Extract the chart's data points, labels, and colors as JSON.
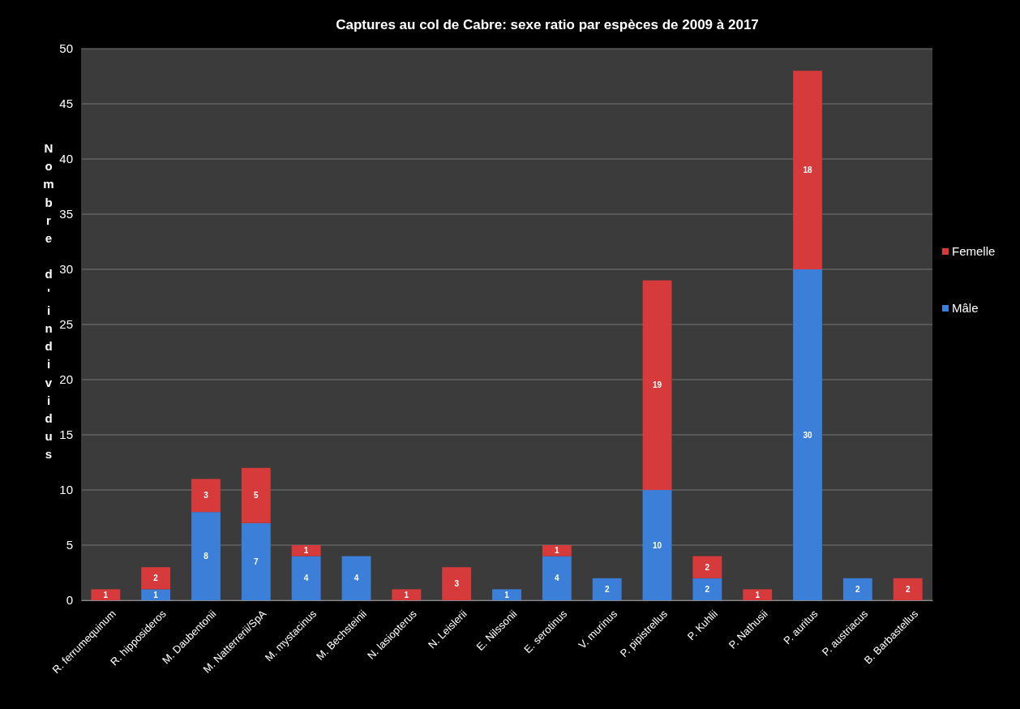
{
  "chart_data": {
    "type": "bar",
    "title": "Captures au col de Cabre: sexe ratio par espèces de 2009 à 2017",
    "ylabel": "Nombre d'individus",
    "categories": [
      "R. ferrumequinum",
      "R. hipposideros",
      "M. Daubentonii",
      "M. Natterrerii/SpA",
      "M. mystacinus",
      "M. Bechsteinii",
      "N. lasiopterus",
      "N. Leislerii",
      "E. Nilssonii",
      "E. serotinus",
      "V. murinus",
      "P. pipistrellus",
      "P. Kuhlii",
      "P. Nathusii",
      "P. auritus",
      "P. austriacus",
      "B. Barbastellus"
    ],
    "series": [
      {
        "name": "Mâle",
        "color": "#3b7fd9",
        "values": [
          0,
          1,
          8,
          7,
          4,
          4,
          0,
          0,
          1,
          4,
          2,
          10,
          2,
          0,
          30,
          2,
          0
        ],
        "value_labels": [
          null,
          "1",
          "8",
          "7",
          "4",
          "4",
          null,
          null,
          "1",
          "4",
          "2",
          "10",
          "2",
          null,
          "30",
          "2",
          null
        ]
      },
      {
        "name": "Femelle",
        "color": "#d63a3a",
        "values": [
          1,
          2,
          3,
          5,
          1,
          0,
          1,
          3,
          0,
          1,
          0,
          19,
          2,
          1,
          18,
          0,
          2
        ],
        "value_labels": [
          "1",
          "2",
          "3",
          "5",
          "1",
          null,
          "1",
          "3",
          null,
          "1",
          null,
          "19",
          "2",
          "1",
          "18",
          null,
          "2"
        ]
      }
    ],
    "stacked": true,
    "ylim": [
      0,
      50
    ],
    "yticks": [
      0,
      5,
      10,
      15,
      20,
      25,
      30,
      35,
      40,
      45,
      50
    ],
    "grid": "y",
    "legend": "right"
  }
}
